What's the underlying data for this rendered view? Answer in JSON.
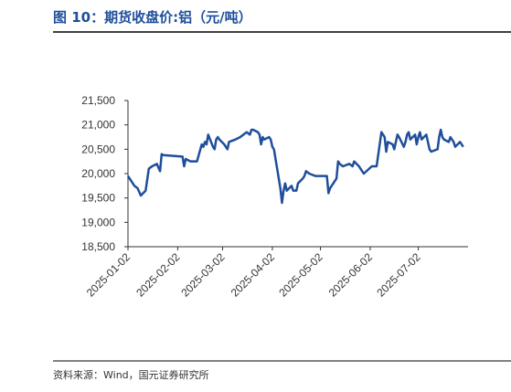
{
  "chart_data": {
    "type": "line",
    "title": "图 10：期货收盘价:铝（元/吨）",
    "source": "资料来源：Wind，国元证券研究所",
    "x": [
      "2025-01-02",
      "2025-01-06",
      "2025-01-08",
      "2025-01-10",
      "2025-01-13",
      "2025-01-15",
      "2025-01-17",
      "2025-01-20",
      "2025-01-22",
      "2025-01-23",
      "2025-01-24",
      "2025-02-05",
      "2025-02-06",
      "2025-02-07",
      "2025-02-10",
      "2025-02-14",
      "2025-02-17",
      "2025-02-18",
      "2025-02-19",
      "2025-02-20",
      "2025-02-21",
      "2025-02-24",
      "2025-02-25",
      "2025-02-26",
      "2025-02-27",
      "2025-02-28",
      "2025-03-03",
      "2025-03-04",
      "2025-03-05",
      "2025-03-06",
      "2025-03-10",
      "2025-03-13",
      "2025-03-17",
      "2025-03-19",
      "2025-03-20",
      "2025-03-21",
      "2025-03-24",
      "2025-03-25",
      "2025-03-26",
      "2025-03-27",
      "2025-03-28",
      "2025-03-31",
      "2025-04-01",
      "2025-04-02",
      "2025-04-03",
      "2025-04-07",
      "2025-04-08",
      "2025-04-09",
      "2025-04-10",
      "2025-04-11",
      "2025-04-14",
      "2025-04-15",
      "2025-04-17",
      "2025-04-18",
      "2025-04-21",
      "2025-04-22",
      "2025-04-23",
      "2025-04-25",
      "2025-04-29",
      "2025-05-06",
      "2025-05-07",
      "2025-05-08",
      "2025-05-09",
      "2025-05-12",
      "2025-05-13",
      "2025-05-14",
      "2025-05-16",
      "2025-05-20",
      "2025-05-22",
      "2025-05-23",
      "2025-05-26",
      "2025-05-27",
      "2025-05-29",
      "2025-06-03",
      "2025-06-05",
      "2025-06-06",
      "2025-06-09",
      "2025-06-10",
      "2025-06-11",
      "2025-06-12",
      "2025-06-13",
      "2025-06-16",
      "2025-06-17",
      "2025-06-18",
      "2025-06-19",
      "2025-06-20",
      "2025-06-23",
      "2025-06-24",
      "2025-06-25",
      "2025-06-26",
      "2025-06-27",
      "2025-06-30",
      "2025-07-01",
      "2025-07-02",
      "2025-07-03",
      "2025-07-04",
      "2025-07-07",
      "2025-07-08",
      "2025-07-09",
      "2025-07-10",
      "2025-07-14",
      "2025-07-15",
      "2025-07-16",
      "2025-07-17",
      "2025-07-18",
      "2025-07-21",
      "2025-07-22",
      "2025-07-23",
      "2025-07-24",
      "2025-07-25",
      "2025-07-28",
      "2025-07-29",
      "2025-07-30"
    ],
    "series": [
      {
        "color": "#1f4e9b",
        "values": [
          19950,
          19750,
          19700,
          19550,
          19650,
          20100,
          20150,
          20200,
          20050,
          20400,
          20380,
          20350,
          20150,
          20300,
          20250,
          20250,
          20600,
          20550,
          20650,
          20600,
          20800,
          20550,
          20500,
          20700,
          20750,
          20700,
          20600,
          20550,
          20500,
          20650,
          20700,
          20750,
          20850,
          20800,
          20900,
          20900,
          20850,
          20800,
          20600,
          20750,
          20700,
          20750,
          20700,
          20550,
          20500,
          19700,
          19400,
          19650,
          19800,
          19650,
          19750,
          19650,
          19650,
          19800,
          19900,
          19950,
          20050,
          20000,
          19950,
          19950,
          19600,
          19700,
          19750,
          19900,
          20250,
          20200,
          20150,
          20200,
          20150,
          20250,
          20150,
          20100,
          20000,
          20150,
          20150,
          20150,
          20850,
          20800,
          20750,
          20450,
          20650,
          20600,
          20500,
          20650,
          20800,
          20750,
          20550,
          20650,
          20800,
          20850,
          20700,
          20800,
          20600,
          20750,
          20850,
          20700,
          20800,
          20650,
          20500,
          20450,
          20500,
          20750,
          20900,
          20750,
          20700,
          20650,
          20750,
          20700,
          20650,
          20550,
          20650,
          20600,
          20550
        ]
      }
    ],
    "xlim": [
      "2025-01-02",
      "2025-08-02"
    ],
    "xticks": [
      "2025-01-02",
      "2025-02-02",
      "2025-03-02",
      "2025-04-02",
      "2025-05-02",
      "2025-06-02",
      "2025-07-02"
    ],
    "ylim": [
      18500,
      21500
    ],
    "yticks": [
      {
        "value": 18500,
        "label": "18,500"
      },
      {
        "value": 19000,
        "label": "19,000"
      },
      {
        "value": 19500,
        "label": "19,500"
      },
      {
        "value": 20000,
        "label": "20,000"
      },
      {
        "value": 20500,
        "label": "20,500"
      },
      {
        "value": 21000,
        "label": "21,000"
      },
      {
        "value": 21500,
        "label": "21,500"
      }
    ],
    "grid": false
  }
}
